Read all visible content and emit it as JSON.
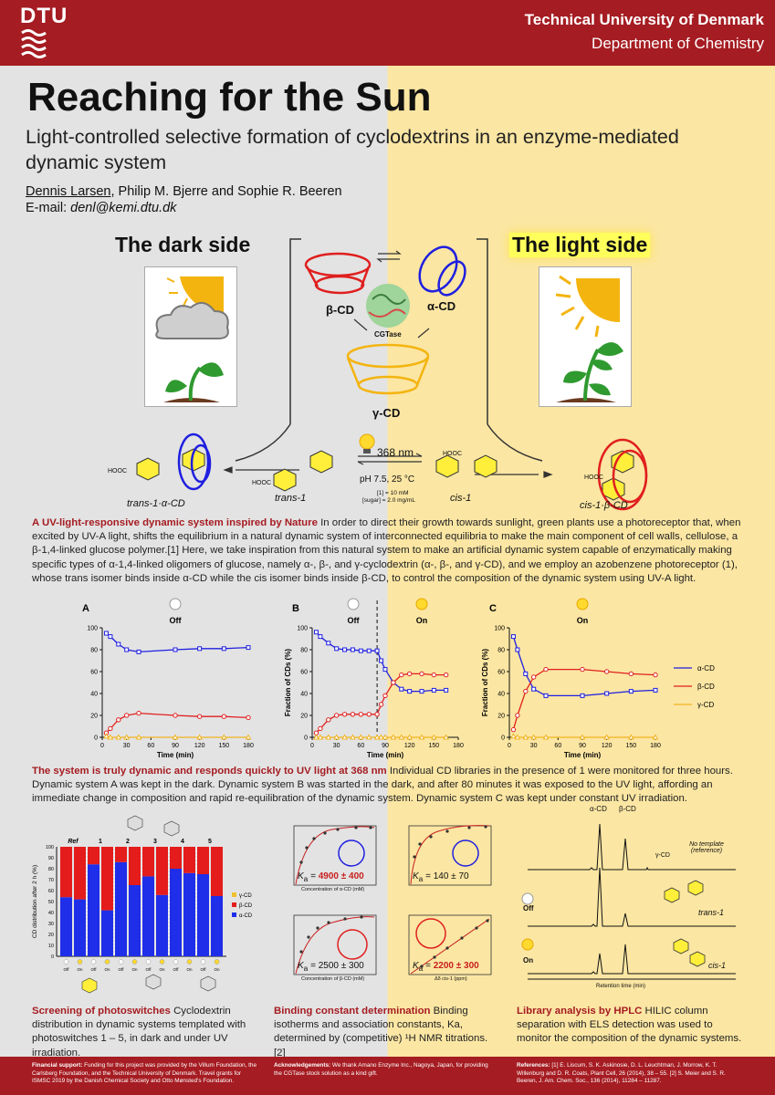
{
  "header": {
    "logo_text": "DTU",
    "university": "Technical University of Denmark",
    "department": "Department of Chemistry"
  },
  "title": "Reaching for the Sun",
  "subtitle": "Light-controlled selective formation of cyclodextrins in an enzyme-mediated dynamic system",
  "authors": {
    "presenter": "Dennis Larsen,",
    "others": " Philip M. Bjerre and Sophie R. Beeren"
  },
  "email": {
    "label": "E-mail: ",
    "address": "denl@kemi.dtu.dk"
  },
  "scheme": {
    "dark_title": "The dark side",
    "light_title": "The light side",
    "beta_cd": "β-CD",
    "alpha_cd": "α-CD",
    "gamma_cd": "γ-CD",
    "enzyme": "CGTase",
    "wavelength": "368 nm",
    "conditions": "pH 7.5, 25 °C",
    "conc_1": "[1] = 10 mM",
    "conc_sugar": "[sugar] = 2.0 mg/mL",
    "trans_complex": "trans-1·α-CD",
    "trans": "trans-1",
    "cis": "cis-1",
    "cis_complex": "cis-1·β-CD",
    "hooc": "HOOC"
  },
  "intro": {
    "heading": "A UV-light-responsive dynamic system inspired by Nature",
    "body": " In order to direct their growth towards sunlight, green plants use a photoreceptor that, when excited by UV-A light, shifts the equilibrium in a natural dynamic system of interconnected equilibria to make the main component of cell walls, cellulose, a β-1,4-linked glucose polymer.[1] Here, we take inspiration from this natural system to make an artificial dynamic system capable of enzymatically making specific types of α-1,4-linked oligomers of glucose, namely α-, β-, and γ-cyclodextrin (α-, β-, and γ-CD), and we employ an azobenzene photoreceptor (1), whose trans isomer binds inside α-CD while the cis isomer binds inside β-CD, to control the composition of the dynamic system using UV-A light."
  },
  "charts_text": {
    "ylabel": "Fraction of CDs (%)",
    "xlabel": "Time (min)",
    "off": "Off",
    "on": "On",
    "legend": [
      "α-CD",
      "β-CD",
      "γ-CD"
    ]
  },
  "chart_data": [
    {
      "type": "line",
      "panel": "A",
      "xlabel": "Time (min)",
      "ylabel": "Fraction of CDs (%)",
      "xlim": [
        0,
        180
      ],
      "ylim": [
        0,
        100
      ],
      "xticks": [
        0,
        30,
        60,
        90,
        120,
        150,
        180
      ],
      "yticks": [
        0,
        20,
        40,
        60,
        80,
        100
      ],
      "series": [
        {
          "name": "α-CD",
          "color": "#1f1fe0",
          "marker": "square",
          "x": [
            5,
            10,
            20,
            30,
            45,
            90,
            120,
            150,
            180
          ],
          "y": [
            95,
            92,
            85,
            80,
            78,
            80,
            81,
            81,
            82
          ]
        },
        {
          "name": "β-CD",
          "color": "#e01f1f",
          "marker": "circle",
          "x": [
            5,
            10,
            20,
            30,
            45,
            90,
            120,
            150,
            180
          ],
          "y": [
            4,
            8,
            16,
            20,
            22,
            20,
            19,
            19,
            18
          ]
        },
        {
          "name": "γ-CD",
          "color": "#f2b31f",
          "marker": "triangle",
          "x": [
            5,
            10,
            20,
            30,
            45,
            90,
            120,
            150,
            180
          ],
          "y": [
            1,
            0,
            0,
            0,
            0,
            0,
            0,
            0,
            0
          ]
        }
      ]
    },
    {
      "type": "line",
      "panel": "B",
      "xlabel": "Time (min)",
      "ylabel": "Fraction of CDs (%)",
      "xlim": [
        0,
        180
      ],
      "ylim": [
        0,
        100
      ],
      "xticks": [
        0,
        30,
        60,
        90,
        120,
        150,
        180
      ],
      "yticks": [
        0,
        20,
        40,
        60,
        80,
        100
      ],
      "series": [
        {
          "name": "α-CD",
          "color": "#1f1fe0",
          "marker": "square",
          "x": [
            5,
            10,
            20,
            30,
            40,
            50,
            60,
            70,
            80,
            85,
            90,
            100,
            110,
            120,
            135,
            150,
            165
          ],
          "y": [
            96,
            92,
            86,
            81,
            80,
            80,
            79,
            79,
            79,
            70,
            62,
            50,
            44,
            42,
            42,
            43,
            43
          ]
        },
        {
          "name": "β-CD",
          "color": "#e01f1f",
          "marker": "circle",
          "x": [
            5,
            10,
            20,
            30,
            40,
            50,
            60,
            70,
            80,
            85,
            90,
            100,
            110,
            120,
            135,
            150,
            165
          ],
          "y": [
            4,
            8,
            16,
            20,
            21,
            21,
            21,
            21,
            21,
            30,
            38,
            50,
            57,
            58,
            58,
            57,
            57
          ]
        },
        {
          "name": "γ-CD",
          "color": "#f2b31f",
          "marker": "triangle",
          "x": [
            5,
            10,
            20,
            30,
            40,
            50,
            60,
            70,
            80,
            85,
            90,
            100,
            110,
            120,
            135,
            150,
            165
          ],
          "y": [
            0,
            0,
            0,
            0,
            0,
            0,
            0,
            0,
            0,
            0,
            0,
            0,
            0,
            0,
            0,
            0,
            0
          ]
        }
      ],
      "annotations": [
        {
          "type": "vline",
          "x": 80
        }
      ]
    },
    {
      "type": "line",
      "panel": "C",
      "xlabel": "Time (min)",
      "ylabel": "Fraction of CDs (%)",
      "xlim": [
        0,
        180
      ],
      "ylim": [
        0,
        100
      ],
      "xticks": [
        0,
        30,
        60,
        90,
        120,
        150,
        180
      ],
      "yticks": [
        0,
        20,
        40,
        60,
        80,
        100
      ],
      "series": [
        {
          "name": "α-CD",
          "color": "#1f1fe0",
          "marker": "square",
          "x": [
            5,
            10,
            20,
            30,
            45,
            90,
            120,
            150,
            180
          ],
          "y": [
            92,
            80,
            58,
            44,
            38,
            38,
            40,
            42,
            43
          ]
        },
        {
          "name": "β-CD",
          "color": "#e01f1f",
          "marker": "circle",
          "x": [
            5,
            10,
            20,
            30,
            45,
            90,
            120,
            150,
            180
          ],
          "y": [
            7,
            20,
            42,
            55,
            62,
            62,
            60,
            58,
            57
          ]
        },
        {
          "name": "γ-CD",
          "color": "#f2b31f",
          "marker": "triangle",
          "x": [
            5,
            10,
            20,
            30,
            45,
            90,
            120,
            150,
            180
          ],
          "y": [
            1,
            0,
            0,
            0,
            0,
            0,
            0,
            0,
            0
          ]
        }
      ]
    }
  ],
  "kinetics": {
    "heading": "The system is truly dynamic and responds quickly to UV light at 368 nm",
    "body": " Individual CD libraries in the presence of 1 were monitored for three hours. Dynamic system A was kept in the dark. Dynamic system B was started in the dark, and after 80 minutes it was exposed to the UV light, affording an immediate change in composition and rapid re-equilibration of the dynamic system. Dynamic system C was kept under constant UV irradiation."
  },
  "screening": {
    "ylabel": "CD distribution after 2 h (%)",
    "groups": [
      "Ref",
      "1",
      "2",
      "3",
      "4",
      "5"
    ],
    "conditions": [
      "Off",
      "On"
    ],
    "legend": [
      "γ-CD",
      "β-CD",
      "α-CD"
    ],
    "colors": {
      "alpha": "#1f2ee8",
      "beta": "#e41c1c",
      "gamma": "#f0c030"
    },
    "bars_alpha": [
      54,
      52,
      84,
      42,
      86,
      65,
      73,
      56,
      80,
      76,
      75,
      55
    ],
    "bars_beta": [
      46,
      48,
      16,
      58,
      14,
      35,
      27,
      44,
      20,
      24,
      25,
      45
    ],
    "heading": "Screening of photoswitches",
    "body": " Cyclodextrin distribution in dynamic systems templated with photoswitches 1 – 5, in dark and under UV irradiation."
  },
  "binding": {
    "ka": [
      "4900 ± 400",
      "140 ± 70",
      "2500 ± 300",
      "2200 ± 300"
    ],
    "xlabel_alpha": "Concentration of α-CD (mM)",
    "xlabel_beta": "Concentration of β-CD (mM)",
    "xlabel_cis": "Δδ cis-1 (ppm)",
    "ylabel_left": "Δδ (ppm)",
    "heading": "Binding constant determination",
    "body": " Binding isotherms and association constants, Ka, determined by (competitive) ¹H NMR titrations.[2]"
  },
  "hplc": {
    "labels": [
      "α-CD",
      "β-CD",
      "γ-CD"
    ],
    "no_template": "No template (reference)",
    "trans": "trans-1",
    "cis": "cis-1",
    "off": "Off",
    "on": "On",
    "xlabel": "Retention time (min)",
    "xticks": [
      "3.0",
      "3.5",
      "4.0",
      "4.5",
      "5.0",
      "5.5",
      "6.0",
      "6.5",
      "7.0",
      "7.5"
    ],
    "heading": "Library analysis by HPLC",
    "body": " HILIC column separation with ELS detection was used to monitor the composition of the dynamic systems."
  },
  "footer": {
    "funding_head": "Financial support:",
    "funding": " Funding for this project was provided by the Villum Foundation, the Carlsberg Foundation, and the Technical University of Denmark. Travel grants for ISMSC 2019 by the Danish Chemical Society and Otto Mønsted's Foundation.",
    "ack_head": "Acknowledgements:",
    "ack": " We thank Amano Enzyme Inc., Nagoya, Japan, for providing the CGTase stock solution as a kind gift.",
    "refs_head": "References:",
    "refs": " [1] E. Liscum, S. K. Askinosie, D. L. Leuchtman, J. Morrow, K. T. Willenburg and D. R. Coats, Plant Cell, 26 (2014), 38 – 55. [2] S. Meier and S. R. Beeren, J. Am. Chem. Soc., 136 (2014), 11284 – 11287."
  }
}
